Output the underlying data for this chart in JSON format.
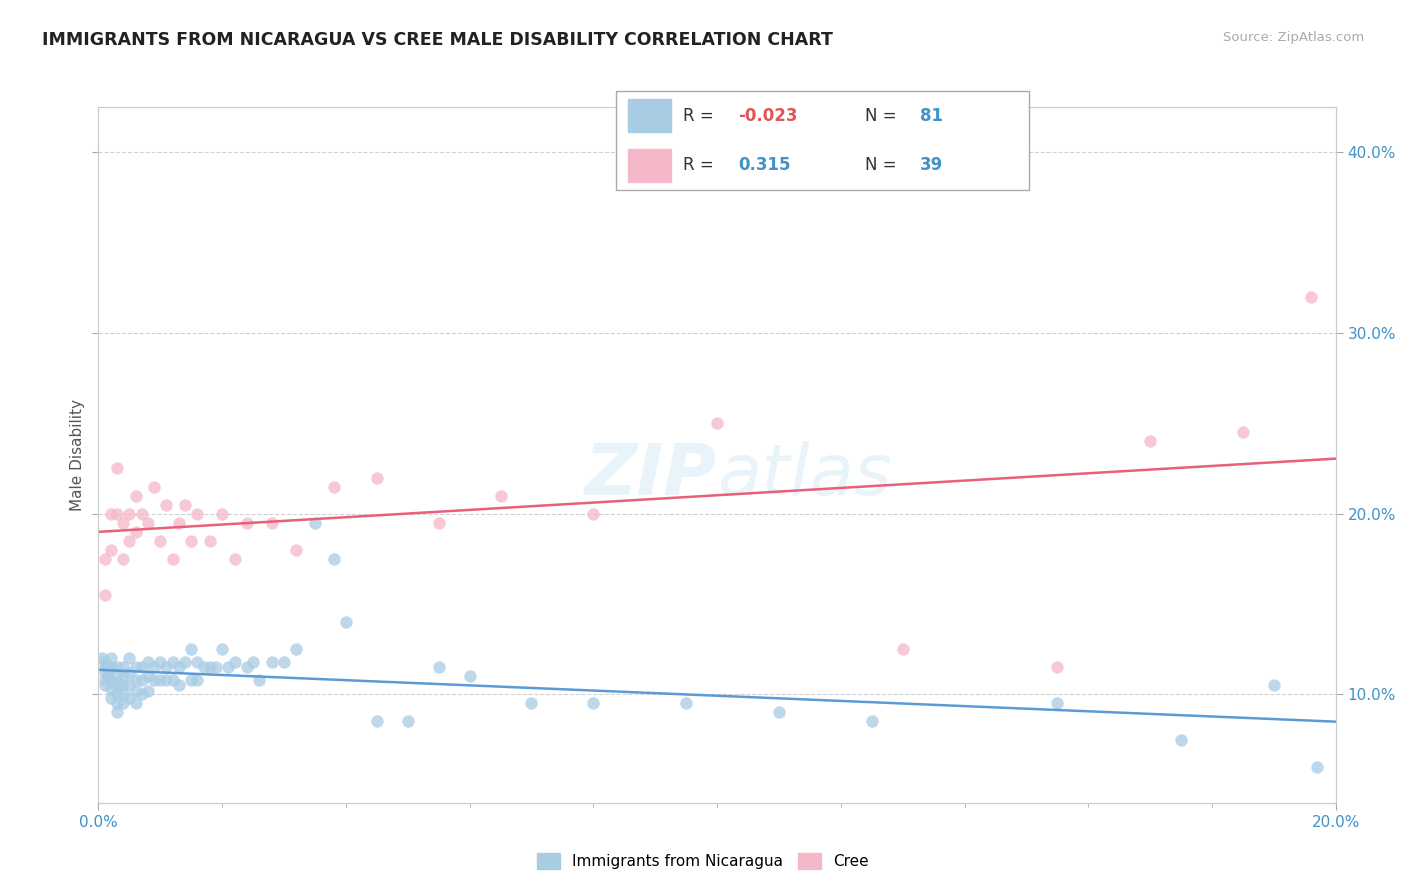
{
  "title": "IMMIGRANTS FROM NICARAGUA VS CREE MALE DISABILITY CORRELATION CHART",
  "source": "Source: ZipAtlas.com",
  "ylabel": "Male Disability",
  "xlim": [
    0.0,
    0.2
  ],
  "ylim": [
    0.04,
    0.425
  ],
  "yticks": [
    0.1,
    0.2,
    0.3,
    0.4
  ],
  "legend1_r": "-0.023",
  "legend1_n": "81",
  "legend2_r": "0.315",
  "legend2_n": "39",
  "blue_color": "#a8cce4",
  "pink_color": "#f4b8c8",
  "blue_line_color": "#5b9bd5",
  "pink_line_color": "#e8607a",
  "watermark": "ZIPatlas",
  "blue_scatter_x": [
    0.0005,
    0.001,
    0.001,
    0.001,
    0.001,
    0.001,
    0.0015,
    0.0015,
    0.002,
    0.002,
    0.002,
    0.002,
    0.002,
    0.003,
    0.003,
    0.003,
    0.003,
    0.003,
    0.003,
    0.004,
    0.004,
    0.004,
    0.004,
    0.004,
    0.005,
    0.005,
    0.005,
    0.005,
    0.006,
    0.006,
    0.006,
    0.006,
    0.007,
    0.007,
    0.007,
    0.008,
    0.008,
    0.008,
    0.009,
    0.009,
    0.01,
    0.01,
    0.011,
    0.011,
    0.012,
    0.012,
    0.013,
    0.013,
    0.014,
    0.015,
    0.015,
    0.016,
    0.016,
    0.017,
    0.018,
    0.019,
    0.02,
    0.021,
    0.022,
    0.024,
    0.025,
    0.026,
    0.028,
    0.03,
    0.032,
    0.035,
    0.038,
    0.04,
    0.045,
    0.05,
    0.055,
    0.06,
    0.07,
    0.08,
    0.095,
    0.11,
    0.125,
    0.155,
    0.175,
    0.19,
    0.197
  ],
  "blue_scatter_y": [
    0.12,
    0.115,
    0.118,
    0.112,
    0.108,
    0.105,
    0.115,
    0.11,
    0.12,
    0.115,
    0.108,
    0.103,
    0.098,
    0.115,
    0.11,
    0.105,
    0.1,
    0.095,
    0.09,
    0.115,
    0.11,
    0.105,
    0.1,
    0.095,
    0.12,
    0.112,
    0.105,
    0.098,
    0.115,
    0.108,
    0.102,
    0.095,
    0.115,
    0.108,
    0.1,
    0.118,
    0.11,
    0.102,
    0.115,
    0.108,
    0.118,
    0.108,
    0.115,
    0.108,
    0.118,
    0.108,
    0.115,
    0.105,
    0.118,
    0.125,
    0.108,
    0.118,
    0.108,
    0.115,
    0.115,
    0.115,
    0.125,
    0.115,
    0.118,
    0.115,
    0.118,
    0.108,
    0.118,
    0.118,
    0.125,
    0.195,
    0.175,
    0.14,
    0.085,
    0.085,
    0.115,
    0.11,
    0.095,
    0.095,
    0.095,
    0.09,
    0.085,
    0.095,
    0.075,
    0.105,
    0.06
  ],
  "pink_scatter_x": [
    0.001,
    0.001,
    0.002,
    0.002,
    0.003,
    0.003,
    0.004,
    0.004,
    0.005,
    0.005,
    0.006,
    0.006,
    0.007,
    0.008,
    0.009,
    0.01,
    0.011,
    0.012,
    0.013,
    0.014,
    0.015,
    0.016,
    0.018,
    0.02,
    0.022,
    0.024,
    0.028,
    0.032,
    0.038,
    0.045,
    0.055,
    0.065,
    0.08,
    0.1,
    0.13,
    0.155,
    0.17,
    0.185,
    0.196
  ],
  "pink_scatter_y": [
    0.175,
    0.155,
    0.2,
    0.18,
    0.225,
    0.2,
    0.195,
    0.175,
    0.2,
    0.185,
    0.21,
    0.19,
    0.2,
    0.195,
    0.215,
    0.185,
    0.205,
    0.175,
    0.195,
    0.205,
    0.185,
    0.2,
    0.185,
    0.2,
    0.175,
    0.195,
    0.195,
    0.18,
    0.215,
    0.22,
    0.195,
    0.21,
    0.2,
    0.25,
    0.125,
    0.115,
    0.24,
    0.245,
    0.32
  ]
}
